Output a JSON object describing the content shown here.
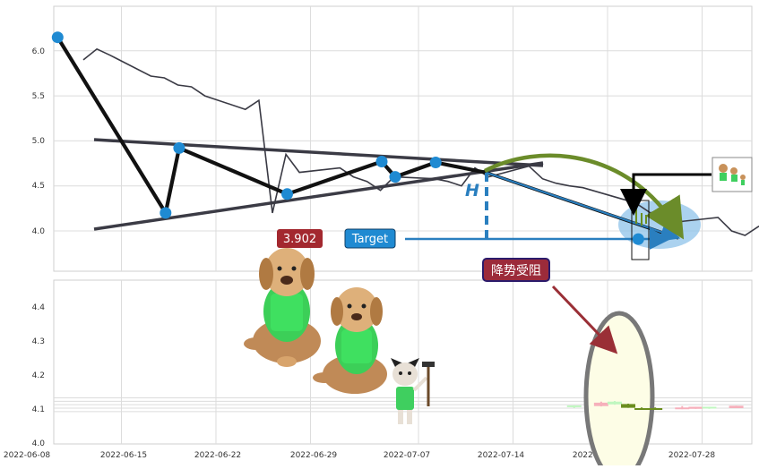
{
  "chart_data": [
    {
      "type": "line",
      "panel": "price-pattern",
      "ylim": [
        3.45,
        6.5
      ],
      "y_ticks": [
        "6.0",
        "5.5",
        "5.0",
        "4.5",
        "4.0"
      ],
      "y_tick_values": [
        6.0,
        5.5,
        5.0,
        4.5,
        4.0
      ],
      "grid": true,
      "series": [
        {
          "x": [
            "2022-06-08",
            "2022-06-09",
            "2022-06-10",
            "2022-06-13",
            "2022-06-14",
            "2022-06-15",
            "2022-06-16",
            "2022-06-17",
            "2022-06-20",
            "2022-06-21",
            "2022-06-22",
            "2022-06-23",
            "2022-06-24",
            "2022-06-27",
            "2022-06-28",
            "2022-06-29",
            "2022-06-30",
            "2022-07-01",
            "2022-07-04",
            "2022-07-05",
            "2022-07-06",
            "2022-07-07",
            "2022-07-08",
            "2022-07-11",
            "2022-07-12",
            "2022-07-13",
            "2022-07-14",
            "2022-07-15",
            "2022-07-18",
            "2022-07-19",
            "2022-07-20",
            "2022-07-21",
            "2022-07-22",
            "2022-07-25",
            "2022-07-26",
            "2022-07-27",
            "2022-07-28",
            "2022-07-29"
          ],
          "values": [
            5.9,
            6.02,
            5.95,
            5.72,
            5.7,
            5.62,
            5.6,
            5.5,
            5.35,
            5.45,
            4.2,
            4.85,
            4.65,
            4.7,
            4.6,
            4.55,
            4.45,
            4.6,
            4.58,
            4.55,
            4.5,
            4.7,
            4.6,
            4.72,
            4.58,
            4.53,
            4.5,
            4.48,
            4.35,
            4.3,
            4.2,
            4.25,
            4.1,
            4.15,
            4.0,
            3.95,
            4.05,
            4.0
          ]
        }
      ],
      "annotations": {
        "target_value_label": "3.902",
        "target_label": "Target",
        "height_label": "H",
        "pivots": [
          {
            "x": "2022-06-12",
            "y": 6.15
          },
          {
            "x": "2022-06-20",
            "y": 4.2
          },
          {
            "x": "2022-06-21",
            "y": 4.92
          },
          {
            "x": "2022-06-29",
            "y": 4.41
          },
          {
            "x": "2022-07-06",
            "y": 4.77
          },
          {
            "x": "2022-07-07",
            "y": 4.6
          },
          {
            "x": "2022-07-10",
            "y": 4.76
          },
          {
            "x": "2022-07-25",
            "y": 3.91
          }
        ]
      }
    },
    {
      "type": "candlestick",
      "panel": "recent-candles",
      "ylim": [
        3.98,
        4.48
      ],
      "y_ticks": [
        "4.4",
        "4.3",
        "4.2",
        "4.1",
        "4.0"
      ],
      "y_tick_values": [
        4.4,
        4.3,
        4.2,
        4.1,
        4.0
      ],
      "x_ticks": [
        "2022-06-08",
        "2022-06-15",
        "2022-06-22",
        "2022-06-29",
        "2022-07-07",
        "2022-07-14",
        "2022-07-21",
        "2022-07-28"
      ],
      "grid": true,
      "candles": [
        {
          "x": "2022-07-17",
          "open": 4.18,
          "close": 4.13,
          "high": 4.18,
          "low": 4.1,
          "color": "light-green"
        },
        {
          "x": "2022-07-19",
          "open": 4.16,
          "close": 4.26,
          "high": 4.29,
          "low": 4.15,
          "color": "light-red"
        },
        {
          "x": "2022-07-20",
          "open": 4.29,
          "close": 4.21,
          "high": 4.31,
          "low": 4.2,
          "color": "light-green"
        },
        {
          "x": "2022-07-21",
          "open": 4.22,
          "close": 4.11,
          "high": 4.23,
          "low": 4.11,
          "color": "dark-green"
        },
        {
          "x": "2022-07-22",
          "open": 4.1,
          "close": 4.07,
          "high": 4.12,
          "low": 4.07,
          "color": "dark-green"
        },
        {
          "x": "2022-07-23",
          "open": 4.1,
          "close": 4.09,
          "high": 4.12,
          "low": 4.07,
          "color": "dark-green"
        },
        {
          "x": "2022-07-25",
          "open": 4.1,
          "close": 4.12,
          "high": 4.16,
          "low": 4.07,
          "color": "light-red"
        },
        {
          "x": "2022-07-26",
          "open": 4.08,
          "close": 4.14,
          "high": 4.14,
          "low": 4.08,
          "color": "light-red"
        },
        {
          "x": "2022-07-27",
          "open": 4.14,
          "close": 4.13,
          "high": 4.14,
          "low": 4.08,
          "color": "light-green"
        },
        {
          "x": "2022-07-29",
          "open": 4.1,
          "close": 4.17,
          "high": 4.17,
          "low": 4.1,
          "color": "light-red"
        }
      ],
      "annotations": {
        "resistance_label": "降势受阻"
      }
    }
  ],
  "colors": {
    "pivot": "#1f8ad2",
    "olive_arc": "#6b8c2a",
    "blue_line": "#2a7fbf",
    "label_red": "#a3282f",
    "label_blue": "#1f8ad2",
    "ellipse_blue": "#8fc3ea",
    "ellipse_yellow": "#fdfde6",
    "light_red": "#f6b0bb",
    "light_green": "#c0f7c0",
    "dark_green": "#6b8e1e"
  },
  "icons": [
    "dog-mascot-icon",
    "dog-mascot-icon",
    "cat-mascot-icon",
    "mascot-thumbnail-icon"
  ]
}
